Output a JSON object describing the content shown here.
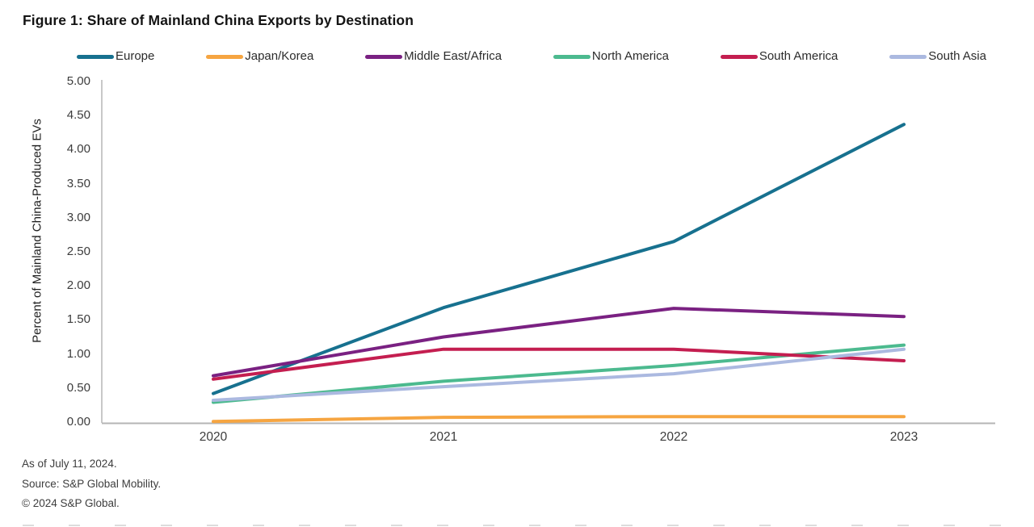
{
  "title": "Figure 1: Share of Mainland China Exports by Destination",
  "footer": {
    "as_of": "As of July 11, 2024.",
    "source": "Source: S&P Global Mobility.",
    "copyright": "© 2024 S&P Global."
  },
  "colors": {
    "axis": "#b5b5b5",
    "tick_text": "#3c3c3c",
    "title_text": "#141414"
  },
  "chart_data": {
    "type": "line",
    "title": "Figure 1: Share of Mainland China Exports by Destination",
    "categories": [
      "2020",
      "2021",
      "2022",
      "2023"
    ],
    "series": [
      {
        "name": "Europe",
        "color": "#17718F",
        "values": [
          0.42,
          1.68,
          2.65,
          4.37
        ]
      },
      {
        "name": "Japan/Korea",
        "color": "#F6A541",
        "values": [
          0.01,
          0.07,
          0.08,
          0.08
        ]
      },
      {
        "name": "Middle East/Africa",
        "color": "#7A2182",
        "values": [
          0.68,
          1.25,
          1.67,
          1.55
        ]
      },
      {
        "name": "North America",
        "color": "#4CBA8F",
        "values": [
          0.29,
          0.6,
          0.83,
          1.13
        ]
      },
      {
        "name": "South America",
        "color": "#C41E50",
        "values": [
          0.63,
          1.07,
          1.07,
          0.9
        ]
      },
      {
        "name": "South Asia",
        "color": "#ABB9E0",
        "values": [
          0.32,
          0.52,
          0.71,
          1.07
        ]
      }
    ],
    "xlabel": "",
    "ylabel": "Percent of Mainland China-Produced EVs",
    "ylim": [
      0,
      5
    ],
    "y_tick_step": 0.5,
    "y_tick_labels": [
      "0.00",
      "0.50",
      "1.00",
      "1.50",
      "2.00",
      "2.50",
      "3.00",
      "3.50",
      "4.00",
      "4.50",
      "5.00"
    ],
    "grid": false,
    "legend_position": "top"
  }
}
